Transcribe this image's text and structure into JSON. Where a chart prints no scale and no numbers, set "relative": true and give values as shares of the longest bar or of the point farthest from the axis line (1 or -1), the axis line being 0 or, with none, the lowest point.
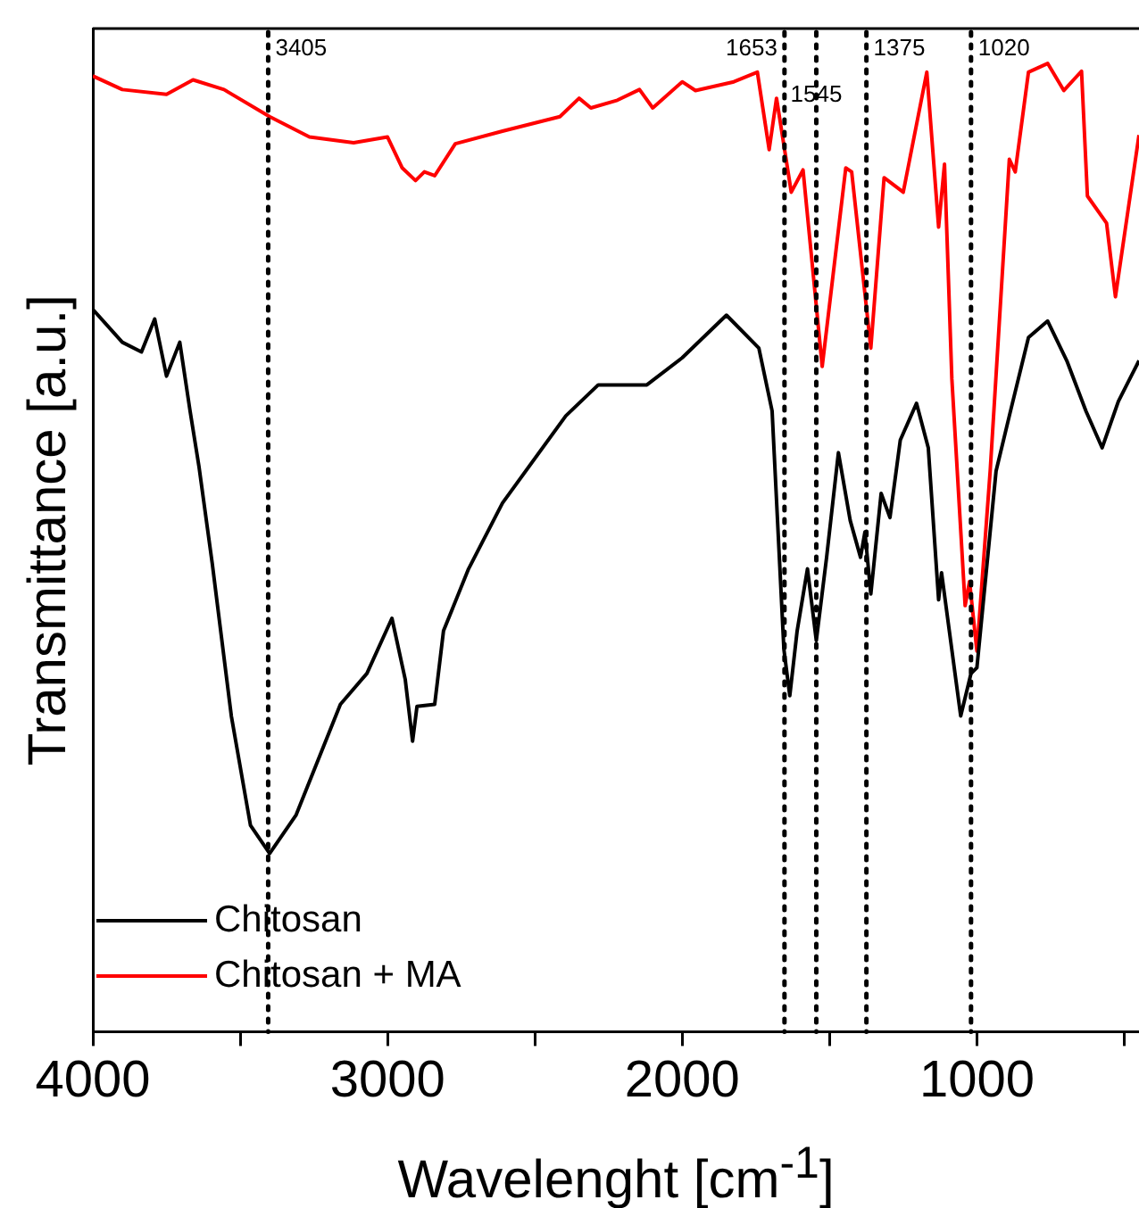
{
  "chart_data": {
    "type": "line",
    "relative": true,
    "xlabel": "Wavelenght [cm$^{-1}$]",
    "ylabel": "Transmittance [a.u.]",
    "xlim": [
      4000,
      450
    ],
    "xticks": [
      4000,
      {
        "value": 3500,
        "label": null
      },
      3000,
      {
        "value": 2500,
        "label": null
      },
      2000,
      {
        "value": 1500,
        "label": null
      },
      1000,
      {
        "value": 500,
        "label": null
      }
    ],
    "legend": "bottom left",
    "grid": false,
    "marker": "none",
    "line_style": "solid",
    "ref_lines": [
      {
        "axis": "x",
        "value": 3405,
        "label": "3405",
        "line_style": "dotted",
        "color": "#000000"
      },
      {
        "axis": "x",
        "value": 1653,
        "label": "1653",
        "line_style": "dotted",
        "color": "#000000"
      },
      {
        "axis": "x",
        "value": 1545,
        "label": "1545",
        "line_style": "dotted",
        "color": "#000000"
      },
      {
        "axis": "x",
        "value": 1375,
        "label": "1375",
        "line_style": "dotted",
        "color": "#000000"
      },
      {
        "axis": "x",
        "value": 1020,
        "label": "1020",
        "line_style": "dotted",
        "color": "#000000"
      }
    ],
    "series": [
      {
        "name": "Chitosan",
        "color": "#000000",
        "x": [
          4000,
          3900,
          3835,
          3790,
          3750,
          3705,
          3670,
          3640,
          3595,
          3530,
          3465,
          3400,
          3310,
          3160,
          3070,
          2985,
          2940,
          2915,
          2900,
          2840,
          2810,
          2725,
          2610,
          2395,
          2285,
          2200,
          2120,
          2000,
          1850,
          1740,
          1695,
          1655,
          1635,
          1610,
          1575,
          1545,
          1510,
          1470,
          1430,
          1395,
          1380,
          1360,
          1325,
          1295,
          1260,
          1205,
          1165,
          1130,
          1120,
          1055,
          1020,
          1000,
          935,
          890,
          825,
          760,
          695,
          630,
          575,
          520,
          450
        ],
        "values": [
          0.746,
          0.712,
          0.702,
          0.736,
          0.677,
          0.712,
          0.641,
          0.584,
          0.484,
          0.326,
          0.213,
          0.184,
          0.224,
          0.338,
          0.37,
          0.427,
          0.364,
          0.3,
          0.336,
          0.338,
          0.414,
          0.478,
          0.546,
          0.636,
          0.668,
          0.668,
          0.668,
          0.696,
          0.74,
          0.706,
          0.641,
          0.395,
          0.347,
          0.414,
          0.478,
          0.404,
          0.49,
          0.598,
          0.528,
          0.49,
          0.516,
          0.452,
          0.556,
          0.531,
          0.611,
          0.649,
          0.603,
          0.446,
          0.474,
          0.326,
          0.37,
          0.376,
          0.579,
          0.636,
          0.717,
          0.734,
          0.693,
          0.641,
          0.603,
          0.651,
          0.693
        ]
      },
      {
        "name": "Chitosan + MA",
        "color": "#ff0000",
        "x": [
          4000,
          3900,
          3750,
          3660,
          3555,
          3400,
          3265,
          3115,
          3000,
          2950,
          2905,
          2875,
          2840,
          2770,
          2610,
          2415,
          2350,
          2310,
          2220,
          2145,
          2100,
          2000,
          1955,
          1825,
          1745,
          1705,
          1680,
          1630,
          1590,
          1525,
          1445,
          1425,
          1360,
          1315,
          1250,
          1170,
          1130,
          1110,
          1085,
          1040,
          1025,
          1000,
          955,
          890,
          870,
          825,
          760,
          705,
          645,
          625,
          560,
          530,
          450
        ],
        "values": [
          0.987,
          0.973,
          0.968,
          0.983,
          0.973,
          0.945,
          0.924,
          0.918,
          0.924,
          0.892,
          0.879,
          0.888,
          0.884,
          0.917,
          0.93,
          0.945,
          0.964,
          0.954,
          0.962,
          0.973,
          0.954,
          0.981,
          0.972,
          0.981,
          0.991,
          0.911,
          0.964,
          0.867,
          0.89,
          0.687,
          0.892,
          0.888,
          0.706,
          0.882,
          0.867,
          0.991,
          0.831,
          0.896,
          0.674,
          0.44,
          0.465,
          0.393,
          0.579,
          0.901,
          0.888,
          0.991,
          1.0,
          0.972,
          0.992,
          0.863,
          0.835,
          0.759,
          0.926
        ]
      }
    ]
  }
}
